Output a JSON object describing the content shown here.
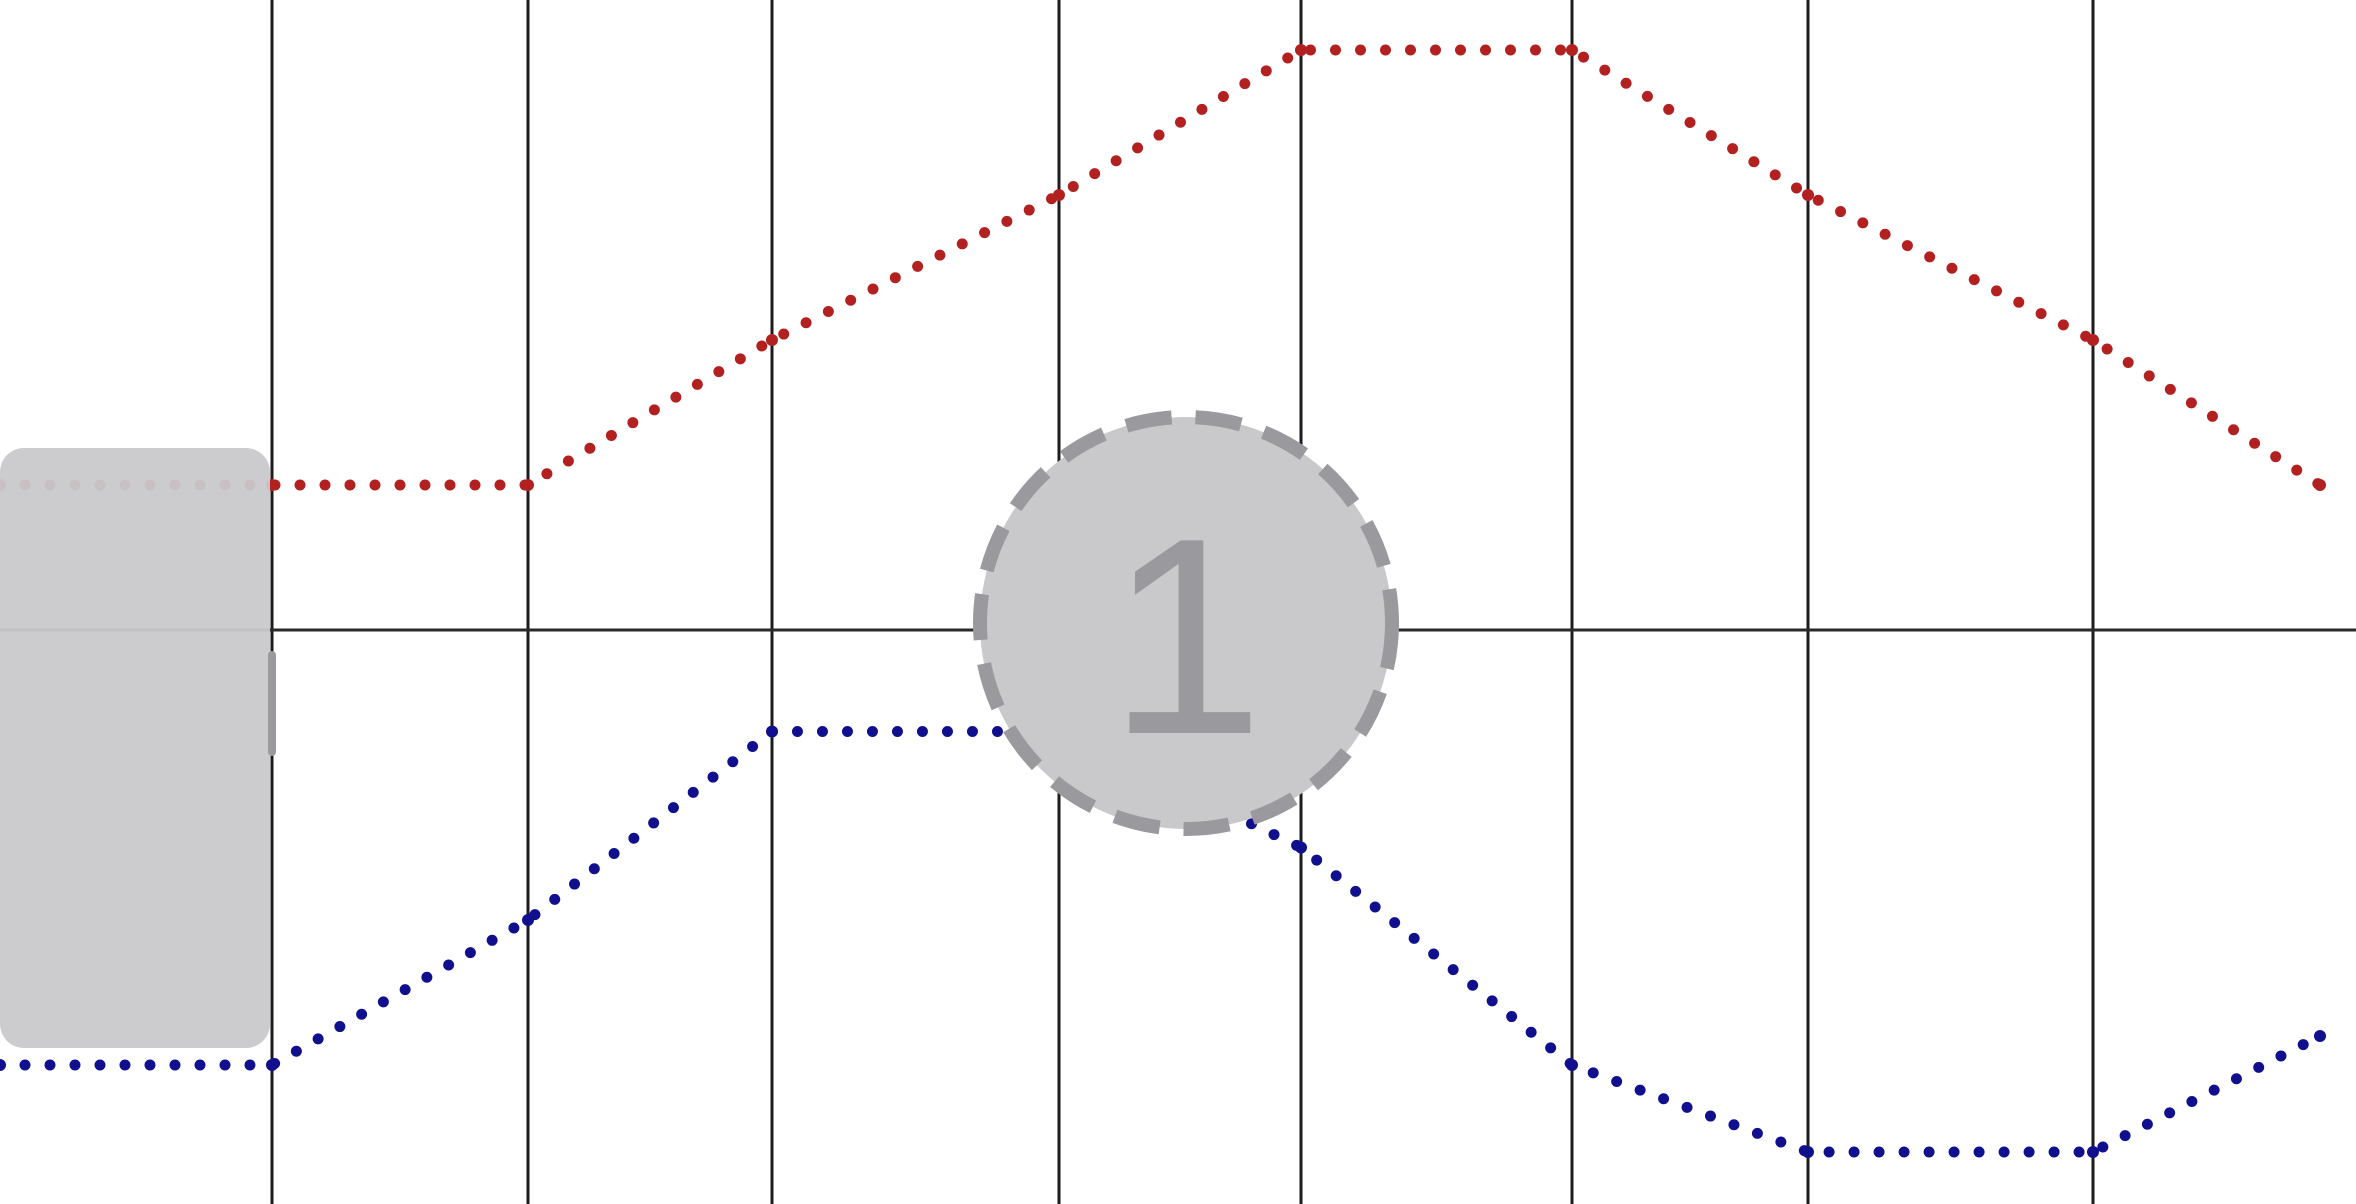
{
  "chart_data": {
    "type": "line",
    "title": "",
    "xlabel": "",
    "ylabel": "",
    "x": [
      0,
      1,
      2,
      3,
      4,
      5,
      6,
      7,
      8,
      9
    ],
    "ylim": [
      -4,
      4
    ],
    "grid": "vertical",
    "series": [
      {
        "color": "#b32020",
        "style": "dotted",
        "values": [
          1,
          1,
          1,
          2,
          3,
          4,
          4,
          3,
          2,
          1
        ]
      },
      {
        "color": "#10108f",
        "style": "dotted",
        "values": [
          -3,
          -3,
          -2,
          -0.7,
          -0.7,
          -1.5,
          -3,
          -3.6,
          -3.6,
          -2.8
        ]
      }
    ]
  },
  "annotation": {
    "marker_label": "1",
    "overlay_color": "#c9c9cc",
    "marker_outline_color": "#9a9a9e"
  }
}
